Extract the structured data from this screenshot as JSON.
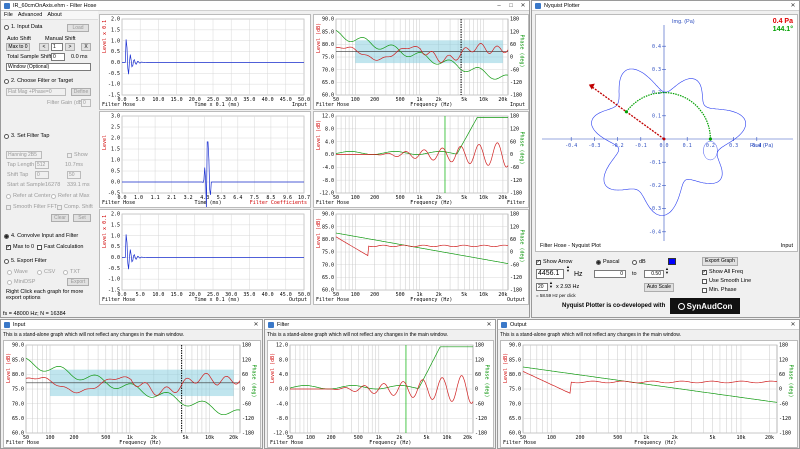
{
  "main": {
    "title": "IR_60cmOnAxis.ehm - Filter Hose",
    "menu": [
      "File",
      "Advanced",
      "About"
    ],
    "steps": {
      "input": {
        "label": "1. Input Data",
        "load": "Load",
        "auto_shift": "Auto Shift",
        "manual_shift": "Manual Shift",
        "max_to_0": "Max to 0",
        "shift_val": "1",
        "total_shift_label": "Total Sample Shift",
        "total_shift_val": "0",
        "ms_val": "0.0 ms",
        "window": "Window (Optional)"
      },
      "filter": {
        "label": "2. Choose Filter or Target",
        "select": "Flat Mag +Phase=0",
        "define": "Define",
        "gain_label": "Filter Gain (dB)",
        "gain_val": "0"
      },
      "tap": {
        "label": "3. Set Filter Tap",
        "window": "Hanning 2B5",
        "show": "Show",
        "tap_length_label": "Tap Length",
        "tap_length": "512",
        "tap_ms": "10.7ms",
        "shift_tap_label": "Shift Tap",
        "shift_a": "0",
        "shift_b": "50",
        "start_label": "Start at Sample",
        "start_val": "16278",
        "start_ms": "339.1 ms",
        "refer_center": "Refer at Center",
        "refer_max": "Refer at Max",
        "smooth": "Smooth Filter FFT",
        "comp_shift": "Comp. Shift",
        "clear": "Clear",
        "set": "Set"
      },
      "convolve": {
        "label": "4. Convolve Input and Filter",
        "max_to_0": "Max to 0",
        "fast_calc": "Fast Calculation"
      },
      "export": {
        "label": "5. Export Filter",
        "wave": "Wave",
        "csv": "CSV",
        "txt": "TXT",
        "minidsp": "MiniDSP",
        "export": "Export",
        "hint": "Right Click each graph for more export options"
      }
    },
    "status": "fs = 48000 Hz; N = 16384",
    "graphs": {
      "t1": {
        "title_l": "Filter Hose",
        "xlabel": "Time x 0.1 (ms)",
        "title_r": "Input",
        "ylabel": "Level x 0.1",
        "xticks": [
          "0.0",
          "5.0",
          "10.0",
          "15.0",
          "20.0",
          "25.0",
          "30.0",
          "35.0",
          "40.0",
          "45.0",
          "50.0"
        ],
        "yticks": [
          "2.0",
          "1.5",
          "1.0",
          "0.5",
          "0.0",
          "-0.5",
          "-1.0",
          "-1.5"
        ]
      },
      "t2": {
        "title_l": "Filter Hose",
        "xlabel": "Time (ms)",
        "title_r": "Filter Coefficients",
        "ylabel": "Level",
        "xticks": [
          "0.0",
          "1.0",
          "1.1",
          "2.1",
          "3.2",
          "4.3",
          "5.3",
          "6.4",
          "7.5",
          "8.5",
          "9.6",
          "10.7"
        ],
        "yticks": [
          "3.0",
          "2.5",
          "2.0",
          "1.5",
          "1.0",
          "0.5",
          "0.0",
          "-0.5"
        ]
      },
      "t3": {
        "title_l": "Filter Hose",
        "xlabel": "Time x 0.1 (ms)",
        "title_r": "Output",
        "ylabel": "Level x 0.1",
        "xticks": [
          "0.0",
          "5.0",
          "10.0",
          "15.0",
          "20.0",
          "25.0",
          "30.0",
          "35.0",
          "40.0",
          "45.0",
          "50.0"
        ],
        "yticks": [
          "2.0",
          "1.5",
          "1.0",
          "0.5",
          "0.0",
          "-0.5",
          "-1.0",
          "-1.5"
        ]
      },
      "f1": {
        "title_l": "Filter Hose",
        "xlabel": "Frequency (Hz)",
        "title_r": "Input",
        "ylabel": "Level (dB)",
        "ylabel2": "Phase (deg)",
        "xticks": [
          "50",
          "100",
          "200",
          "500",
          "1k",
          "2k",
          "5k",
          "10k",
          "20k"
        ],
        "yticks": [
          "90.0",
          "85.0",
          "80.0",
          "75.0",
          "70.0",
          "65.0",
          "60.0"
        ],
        "y2ticks": [
          "180",
          "120",
          "60",
          "0",
          "-60",
          "-120",
          "-180"
        ]
      },
      "f2": {
        "title_l": "Filter Hose",
        "xlabel": "Frequency (Hz)",
        "title_r": "Filter",
        "ylabel": "Level (dB)",
        "ylabel2": "Phase (deg)",
        "xticks": [
          "50",
          "100",
          "200",
          "500",
          "1k",
          "2k",
          "5k",
          "10k",
          "20k"
        ],
        "yticks": [
          "12.0",
          "8.0",
          "4.0",
          "0.0",
          "-4.0",
          "-8.0",
          "-12.0"
        ],
        "y2ticks": [
          "180",
          "120",
          "60",
          "0",
          "-60",
          "-120",
          "-180"
        ]
      },
      "f3": {
        "title_l": "Filter Hose",
        "xlabel": "Frequency (Hz)",
        "title_r": "Output",
        "ylabel": "Level (dB)",
        "ylabel2": "Phase (deg)",
        "xticks": [
          "50",
          "100",
          "200",
          "500",
          "1k",
          "2k",
          "5k",
          "10k",
          "20k"
        ],
        "yticks": [
          "90.0",
          "85.0",
          "80.0",
          "75.0",
          "70.0",
          "65.0",
          "60.0"
        ],
        "y2ticks": [
          "180",
          "120",
          "60",
          "0",
          "-60",
          "-120",
          "-180"
        ]
      }
    }
  },
  "nyquist": {
    "title": "Nyquist Plotter",
    "readout_mag": "0.4 Pa",
    "readout_ang": "144.1°",
    "ylabel": "Img. (Pa)",
    "xlabel": "Real (Pa)",
    "footer_l": "Filter Hose - Nyquist Plot",
    "footer_r": "Input",
    "xticks": [
      "-0.4",
      "-0.3",
      "-0.2",
      "-0.1",
      "0.0",
      "0.1",
      "0.2",
      "0.3",
      "0.4"
    ],
    "yticks": [
      "0.4",
      "0.3",
      "0.2",
      "0.1",
      "0.0",
      "-0.1",
      "-0.2",
      "-0.3",
      "-0.4"
    ],
    "show_arrow": "Show Arrow",
    "pascal": "Pascal",
    "db": "dB",
    "freq_val": "4456.1",
    "hz": "Hz",
    "range_a": "0",
    "to": "to",
    "range_b": "0.50",
    "export": "Export Graph",
    "show_all": "Show All Freq",
    "smooth": "Use Smooth Line",
    "min_phase": "Min. Phase",
    "step_val": "20",
    "step_hz": "x 2.93 Hz",
    "step_note": "= 58.59 Hz per click",
    "autoscale": "Auto Scale",
    "credit": "Nyquist Plotter is co-developed with",
    "logo": "SynAudCon"
  },
  "standalone": {
    "note": "This is a stand-alone graph which will not reflect any changes in the main window.",
    "windows": [
      {
        "title": "Input",
        "title_l": "Filter Hose",
        "xlabel": "Frequency (Hz)",
        "ylabel": "Level (dB)",
        "ylabel2": "Phase (deg)",
        "yticks": [
          "90.0",
          "85.0",
          "80.0",
          "75.0",
          "70.0",
          "65.0",
          "60.0"
        ]
      },
      {
        "title": "Filter",
        "title_l": "Filter Hose",
        "xlabel": "Frequency (Hz)",
        "ylabel": "Level (dB)",
        "ylabel2": "Phase (deg)",
        "yticks": [
          "12.0",
          "8.0",
          "4.0",
          "0.0",
          "-4.0",
          "-8.0",
          "-12.0"
        ]
      },
      {
        "title": "Output",
        "title_l": "Filter Hose",
        "xlabel": "Frequency (Hz)",
        "ylabel": "Level (dB)",
        "ylabel2": "Phase (deg)",
        "yticks": [
          "90.0",
          "85.0",
          "80.0",
          "75.0",
          "70.0",
          "65.0",
          "60.0"
        ]
      }
    ],
    "xticks": [
      "50",
      "100",
      "200",
      "500",
      "1k",
      "2k",
      "5k",
      "10k",
      "20k"
    ],
    "y2ticks": [
      "180",
      "120",
      "60",
      "0",
      "-60",
      "-120",
      "-180"
    ]
  }
}
